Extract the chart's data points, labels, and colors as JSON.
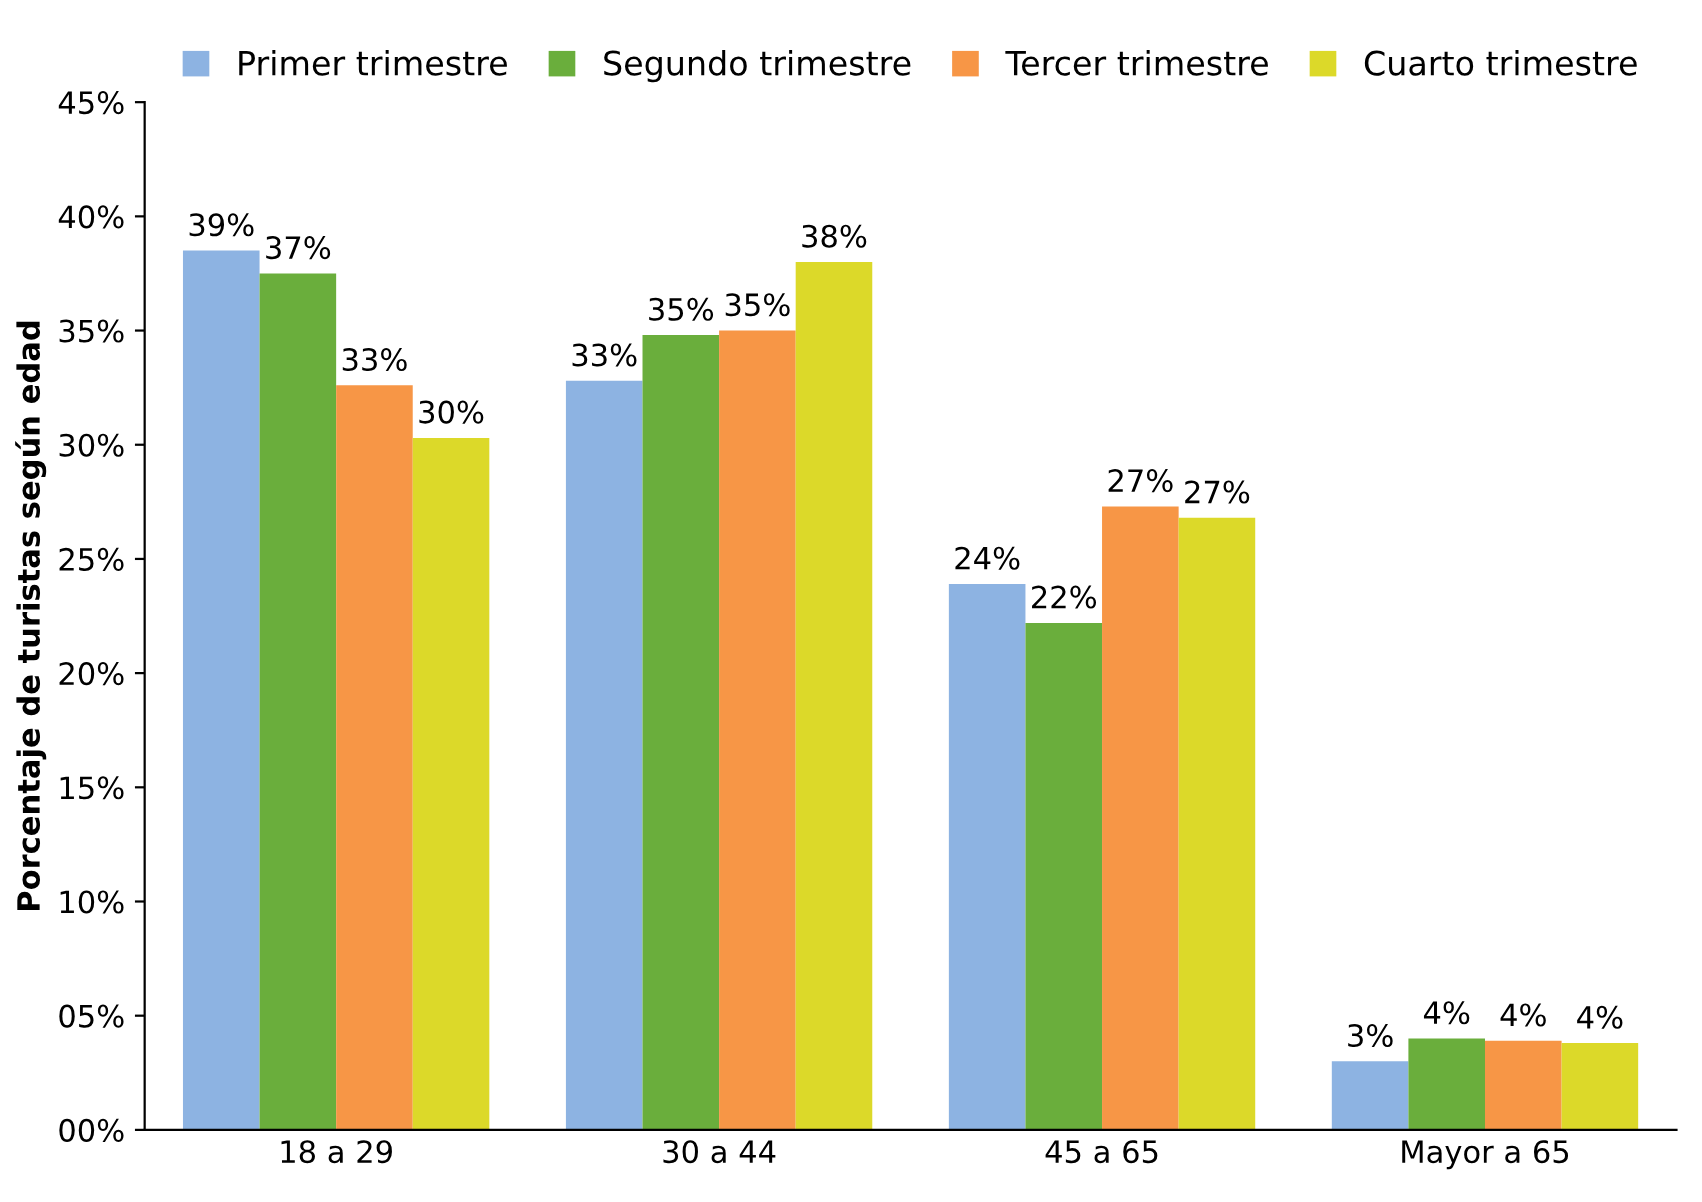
{
  "chart_data": {
    "type": "bar",
    "ylabel": "Porcentaje de turistas según edad",
    "categories": [
      "18 a 29",
      "30 a 44",
      "45 a 65",
      "Mayor a 65"
    ],
    "series": [
      {
        "name": "Primer trimestre",
        "color": "#8db3e2",
        "values": [
          38.5,
          32.8,
          23.9,
          3.0
        ],
        "value_labels": [
          "39%",
          "33%",
          "24%",
          "3%"
        ]
      },
      {
        "name": "Segundo trimestre",
        "color": "#6aae3c",
        "values": [
          37.5,
          34.8,
          22.2,
          4.0
        ],
        "value_labels": [
          "37%",
          "35%",
          "22%",
          "4%"
        ]
      },
      {
        "name": "Tercer trimestre",
        "color": "#f79646",
        "values": [
          32.6,
          35.0,
          27.3,
          3.9
        ],
        "value_labels": [
          "33%",
          "35%",
          "27%",
          "4%"
        ]
      },
      {
        "name": "Cuarto trimestre",
        "color": "#dcd929",
        "values": [
          30.3,
          38.0,
          26.8,
          3.8
        ],
        "value_labels": [
          "30%",
          "38%",
          "27%",
          "4%"
        ]
      }
    ],
    "ylim": [
      0,
      45
    ],
    "yticks": [
      {
        "value": 0,
        "label": "00%"
      },
      {
        "value": 5,
        "label": "05%"
      },
      {
        "value": 10,
        "label": "10%"
      },
      {
        "value": 15,
        "label": "15%"
      },
      {
        "value": 20,
        "label": "20%"
      },
      {
        "value": 25,
        "label": "25%"
      },
      {
        "value": 30,
        "label": "30%"
      },
      {
        "value": 35,
        "label": "35%"
      },
      {
        "value": 40,
        "label": "40%"
      },
      {
        "value": 45,
        "label": "45%"
      }
    ],
    "grid": false,
    "legend": "top"
  }
}
